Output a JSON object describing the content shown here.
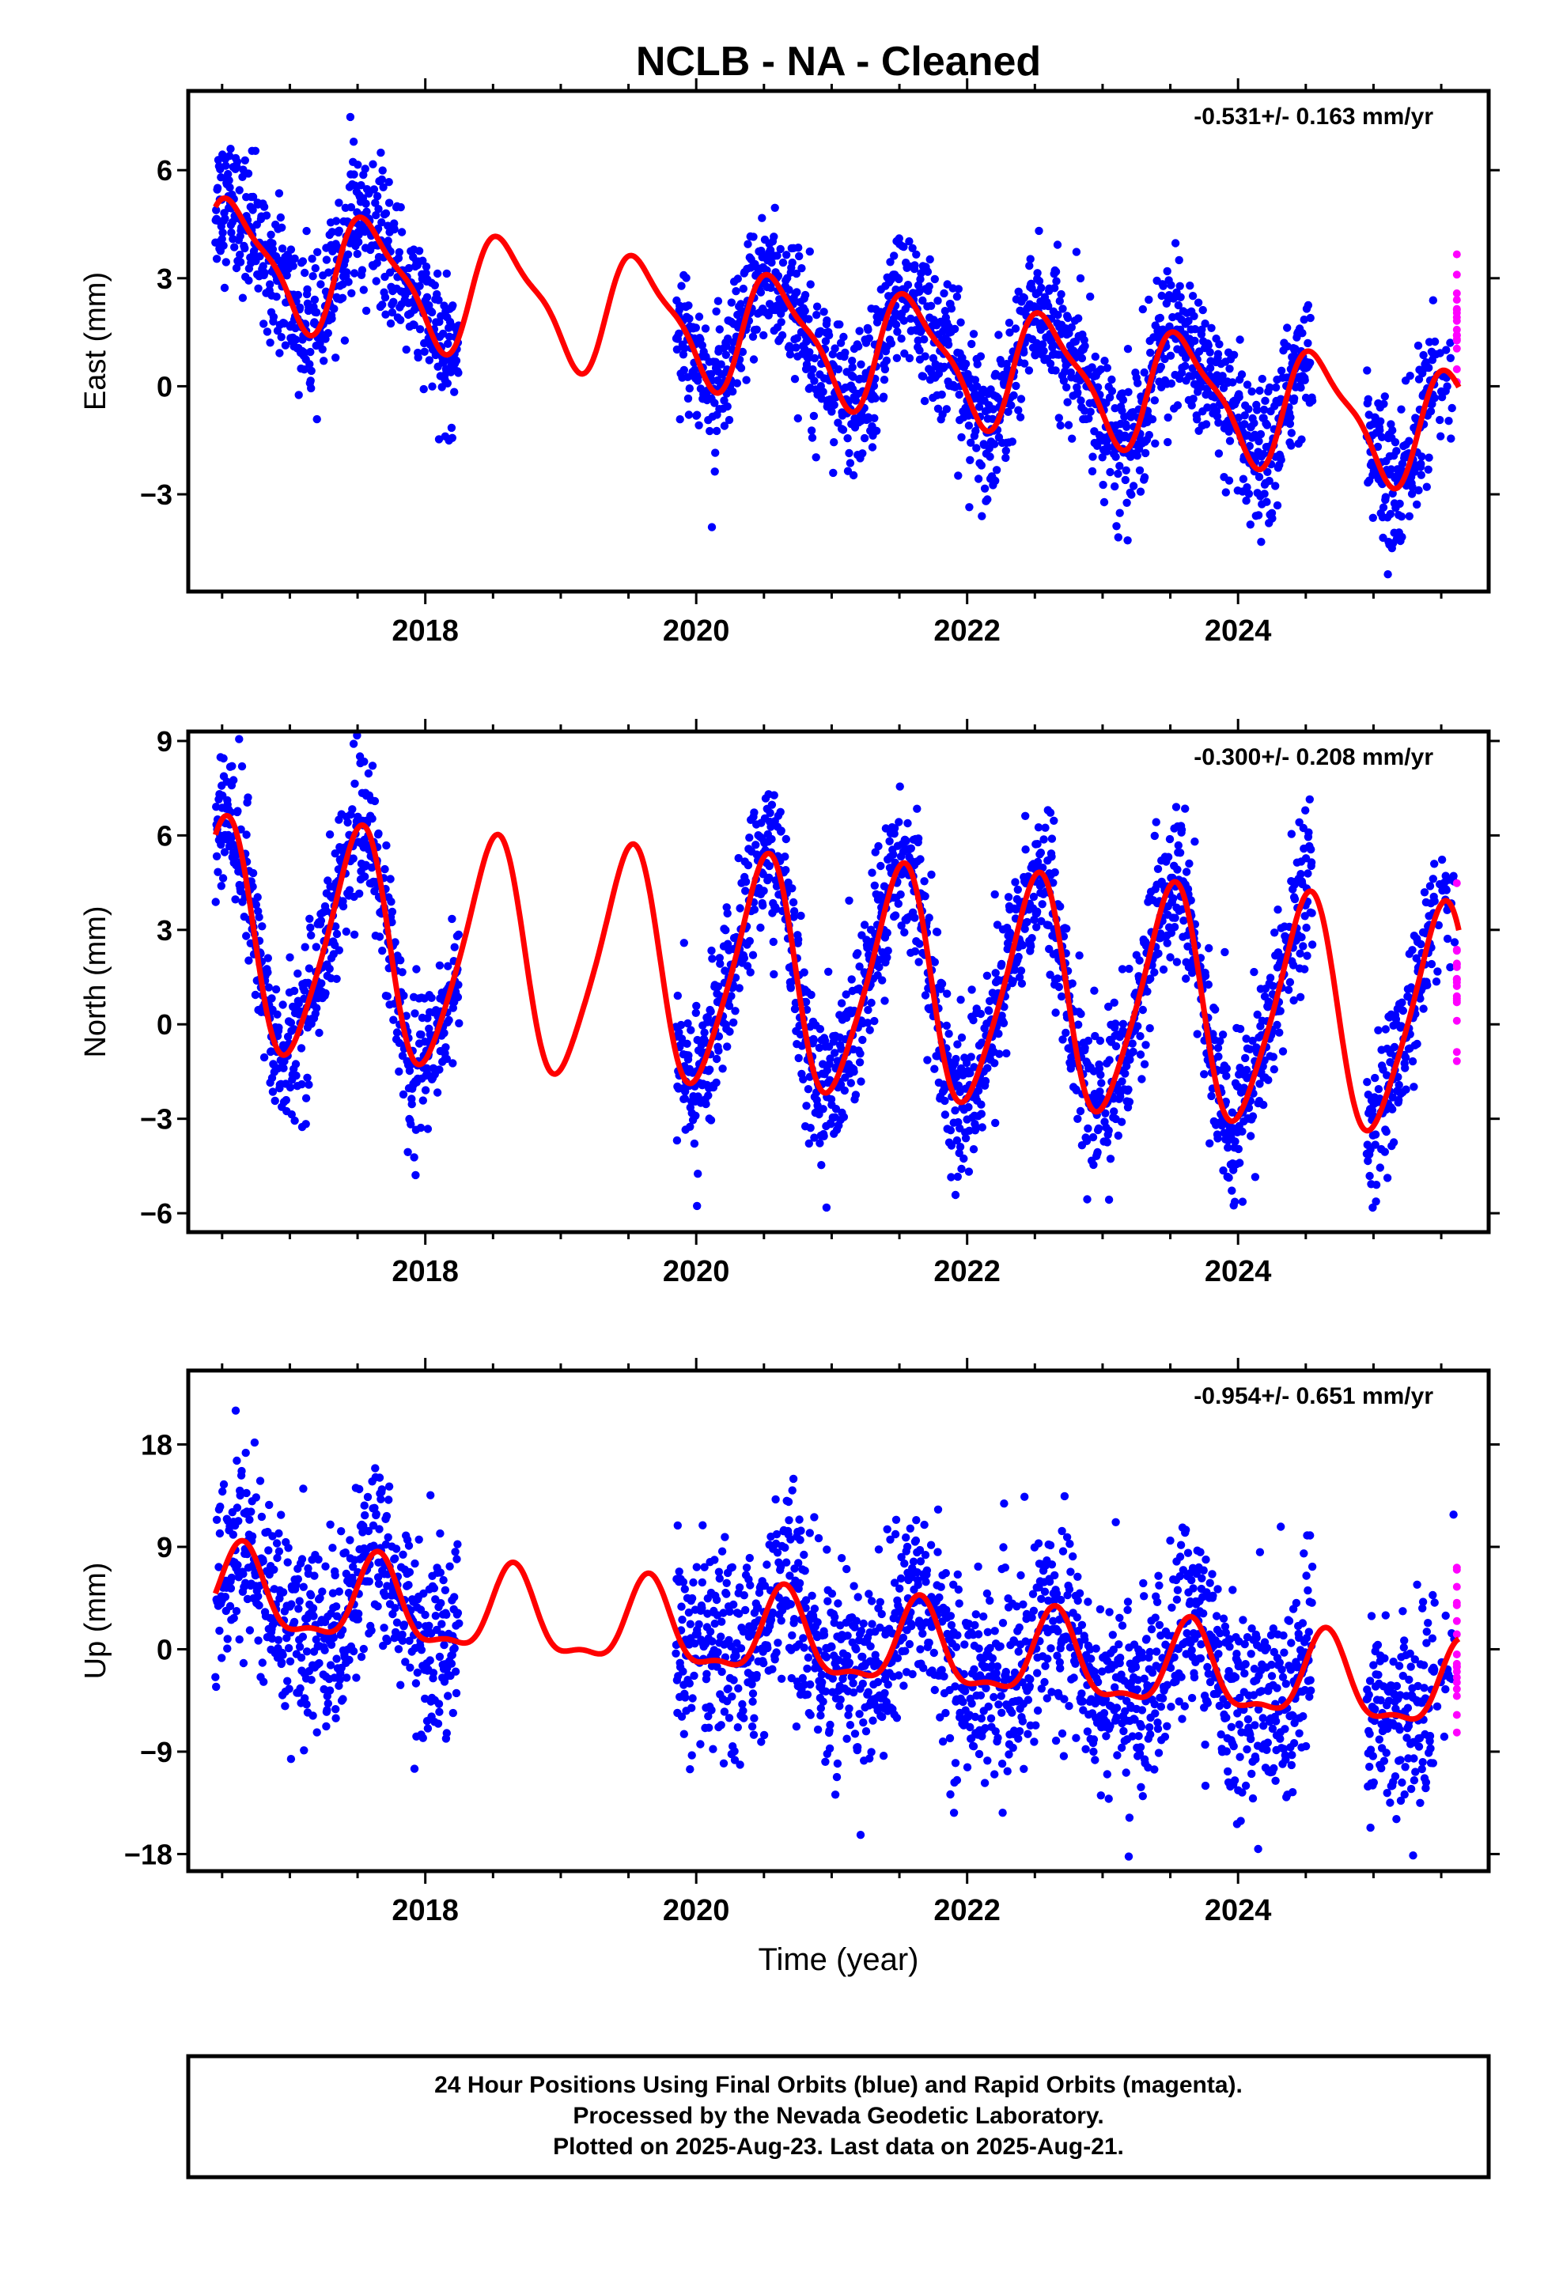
{
  "page": {
    "title": "NCLB  - NA - Cleaned",
    "footer_lines": [
      "24 Hour Positions Using Final Orbits (blue) and Rapid Orbits (magenta).",
      "Processed by the Nevada Geodetic Laboratory.",
      "Plotted on 2025-Aug-23. Last data on 2025-Aug-21."
    ]
  },
  "colors": {
    "final_orbits": "#0000ff",
    "rapid_orbits": "#ff00ff",
    "model_fit": "#ff0000",
    "axes": "#000000"
  },
  "chart_data": [
    {
      "type": "scatter",
      "component": "east",
      "title": "NCLB  - NA - Cleaned",
      "ylabel": "East (mm)",
      "xlabel": "",
      "rate_text": "-0.531+/- 0.163 mm/yr",
      "xlim": [
        2016.25,
        2025.85
      ],
      "ylim": [
        -5.7,
        8.2
      ],
      "yticks": [
        -3,
        0,
        3,
        6
      ],
      "xticks": [
        2018,
        2020,
        2022,
        2024
      ],
      "grid": false,
      "data_segments": [
        [
          2016.45,
          2018.25
        ],
        [
          2019.85,
          2024.55
        ],
        [
          2024.95,
          2025.6
        ]
      ],
      "rapid_range": [
        2025.45,
        2025.63
      ],
      "scatter_sd": 0.95,
      "model": {
        "offset": 1.2,
        "trend": -0.531,
        "annual_amp": 1.55,
        "annual_phase_year": 2016.6,
        "semiannual_amp": 0.45,
        "semiannual_phase_year": 2016.45,
        "ref_year": 2021.0
      }
    },
    {
      "type": "scatter",
      "component": "north",
      "title": "",
      "ylabel": "North (mm)",
      "xlabel": "",
      "rate_text": "-0.300+/- 0.208 mm/yr",
      "xlim": [
        2016.25,
        2025.85
      ],
      "ylim": [
        -6.6,
        9.3
      ],
      "yticks": [
        -6,
        -3,
        0,
        3,
        6,
        9
      ],
      "xticks": [
        2018,
        2020,
        2022,
        2024
      ],
      "grid": false,
      "data_segments": [
        [
          2016.45,
          2018.25
        ],
        [
          2019.85,
          2024.55
        ],
        [
          2024.95,
          2025.6
        ]
      ],
      "rapid_range": [
        2025.45,
        2025.63
      ],
      "scatter_sd": 1.2,
      "model": {
        "offset": 1.4,
        "trend": -0.3,
        "annual_amp": 3.6,
        "annual_phase_year": 2016.5,
        "semiannual_amp": 0.55,
        "semiannual_phase_year": 2016.6,
        "ref_year": 2021.0
      }
    },
    {
      "type": "scatter",
      "component": "up",
      "title": "",
      "ylabel": "Up (mm)",
      "xlabel": "Time (year)",
      "rate_text": "-0.954+/- 0.651 mm/yr",
      "xlim": [
        2016.25,
        2025.85
      ],
      "ylim": [
        -19.5,
        24.5
      ],
      "yticks": [
        -18,
        -9,
        0,
        9,
        18
      ],
      "xticks": [
        2018,
        2020,
        2022,
        2024
      ],
      "grid": false,
      "data_segments": [
        [
          2016.45,
          2018.25
        ],
        [
          2019.85,
          2024.55
        ],
        [
          2024.95,
          2025.6
        ]
      ],
      "rapid_range": [
        2025.45,
        2025.63
      ],
      "scatter_sd": 4.2,
      "model": {
        "offset": 0.5,
        "trend": -0.954,
        "annual_amp": 3.6,
        "annual_phase_year": 2016.65,
        "semiannual_amp": 1.3,
        "semiannual_phase_year": 2016.65,
        "ref_year": 2021.0
      }
    }
  ]
}
